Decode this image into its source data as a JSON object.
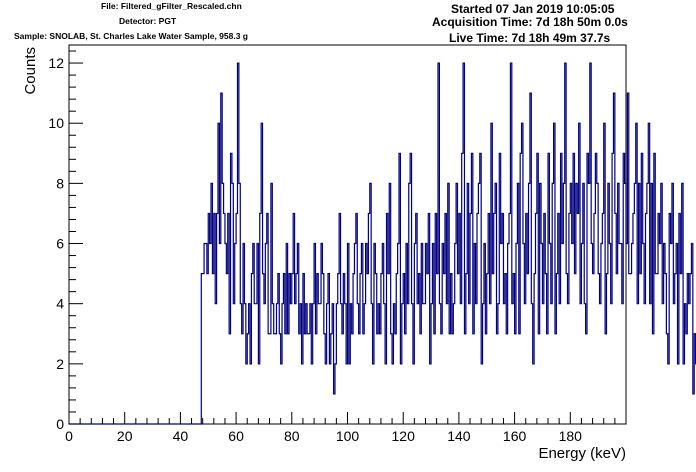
{
  "header": {
    "file": "File: Filtered_gFilter_Rescaled.chn",
    "detector": "Detector: PGT",
    "sample": "Sample: SNOLAB, St. Charles Lake Water Sample, 958.3 g",
    "started": "Started 07 Jan 2019 10:05:05",
    "acquisition_time": "Acquisition Time: 7d 18h 50m 0.0s",
    "live_time": "Live Time: 7d 18h 49m 37.7s"
  },
  "colors": {
    "line": "#000080",
    "axes": "#000000",
    "background": "#ffffff"
  },
  "chart_data": {
    "type": "line",
    "step": true,
    "title": "",
    "xlabel": "Energy (keV)",
    "ylabel": "Counts",
    "xlim": [
      0,
      200
    ],
    "ylim": [
      0,
      12.6
    ],
    "x_ticks": [
      0,
      20,
      40,
      60,
      80,
      100,
      120,
      140,
      160,
      180
    ],
    "y_ticks": [
      0,
      2,
      4,
      6,
      8,
      10,
      12
    ],
    "grid": false,
    "legend": "none",
    "series": [
      {
        "bin_width": 0.5,
        "x_start": 0,
        "values": [
          0,
          0,
          0,
          0,
          0,
          0,
          0,
          0,
          0,
          0,
          0,
          0,
          0,
          0,
          0,
          0,
          0,
          0,
          0,
          0,
          0,
          0,
          0,
          0,
          0,
          0,
          0,
          0,
          0,
          0,
          0,
          0,
          0,
          0,
          0,
          0,
          0,
          0,
          0,
          0,
          0,
          0,
          0,
          0,
          0,
          0,
          0,
          0,
          0,
          0,
          0,
          0,
          0,
          0,
          0,
          0,
          0,
          0,
          0,
          0,
          0,
          0,
          0,
          0,
          0,
          0,
          0,
          0,
          0,
          0,
          0,
          0,
          0,
          0,
          0,
          0,
          0,
          0,
          0,
          0,
          0,
          0,
          0,
          0,
          0,
          0,
          0,
          0,
          0,
          0,
          0,
          0,
          0,
          0,
          0,
          5,
          5,
          6,
          6,
          5,
          7,
          6,
          8,
          5,
          7,
          4,
          7,
          10,
          6,
          11,
          8,
          7,
          6,
          5,
          7,
          3,
          9,
          8,
          4,
          6,
          7,
          12,
          8,
          4,
          3,
          6,
          4,
          2,
          3,
          4,
          2,
          5,
          6,
          4,
          4,
          6,
          2,
          7,
          10,
          5,
          4,
          6,
          7,
          3,
          3,
          8,
          4,
          3,
          3,
          4,
          5,
          3,
          2,
          4,
          5,
          3,
          6,
          3,
          5,
          4,
          5,
          7,
          4,
          5,
          6,
          3,
          4,
          2,
          5,
          3,
          4,
          3,
          3,
          4,
          2,
          4,
          6,
          3,
          5,
          4,
          4,
          6,
          5,
          3,
          2,
          4,
          5,
          2,
          3,
          4,
          1,
          2,
          4,
          5,
          7,
          4,
          3,
          5,
          4,
          2,
          6,
          2,
          4,
          3,
          5,
          6,
          7,
          4,
          3,
          5,
          6,
          3,
          4,
          6,
          5,
          7,
          8,
          4,
          2,
          6,
          5,
          3,
          4,
          3,
          5,
          6,
          4,
          2,
          7,
          5,
          8,
          3,
          2,
          4,
          3,
          5,
          6,
          9,
          2,
          4,
          5,
          3,
          6,
          4,
          8,
          9,
          4,
          2,
          6,
          7,
          4,
          5,
          3,
          6,
          4,
          4,
          6,
          5,
          7,
          2,
          4,
          6,
          3,
          7,
          5,
          12,
          4,
          3,
          6,
          5,
          7,
          4,
          8,
          3,
          5,
          3,
          4,
          6,
          8,
          5,
          7,
          4,
          9,
          12,
          3,
          5,
          8,
          4,
          7,
          9,
          3,
          6,
          4,
          7,
          8,
          9,
          2,
          4,
          6,
          3,
          5,
          7,
          4,
          10,
          5,
          7,
          8,
          3,
          4,
          9,
          6,
          7,
          4,
          5,
          3,
          6,
          7,
          12,
          4,
          5,
          3,
          6,
          8,
          3,
          9,
          10,
          6,
          4,
          7,
          5,
          8,
          11,
          4,
          2,
          5,
          7,
          9,
          3,
          8,
          6,
          4,
          7,
          5,
          3,
          9,
          6,
          4,
          8,
          10,
          3,
          5,
          7,
          4,
          9,
          6,
          8,
          12,
          5,
          4,
          7,
          8,
          6,
          9,
          5,
          8,
          7,
          10,
          4,
          6,
          8,
          4,
          3,
          9,
          8,
          12,
          6,
          5,
          7,
          9,
          8,
          5,
          4,
          6,
          7,
          10,
          3,
          5,
          8,
          6,
          4,
          9,
          11,
          7,
          5,
          8,
          6,
          6,
          4,
          9,
          8,
          6,
          11,
          5,
          5,
          6,
          7,
          8,
          10,
          4,
          8,
          5,
          9,
          6,
          4,
          7,
          8,
          10,
          4,
          8,
          3,
          9,
          5,
          5,
          7,
          6,
          8,
          4,
          6,
          5,
          3,
          2,
          7,
          6,
          8,
          4,
          5,
          6,
          2,
          7,
          5,
          8,
          2,
          4,
          3,
          5,
          4,
          5,
          6,
          1,
          3,
          2,
          2,
          5,
          4,
          3,
          5,
          6,
          3,
          2,
          4,
          4,
          5,
          4,
          5
        ]
      }
    ]
  }
}
